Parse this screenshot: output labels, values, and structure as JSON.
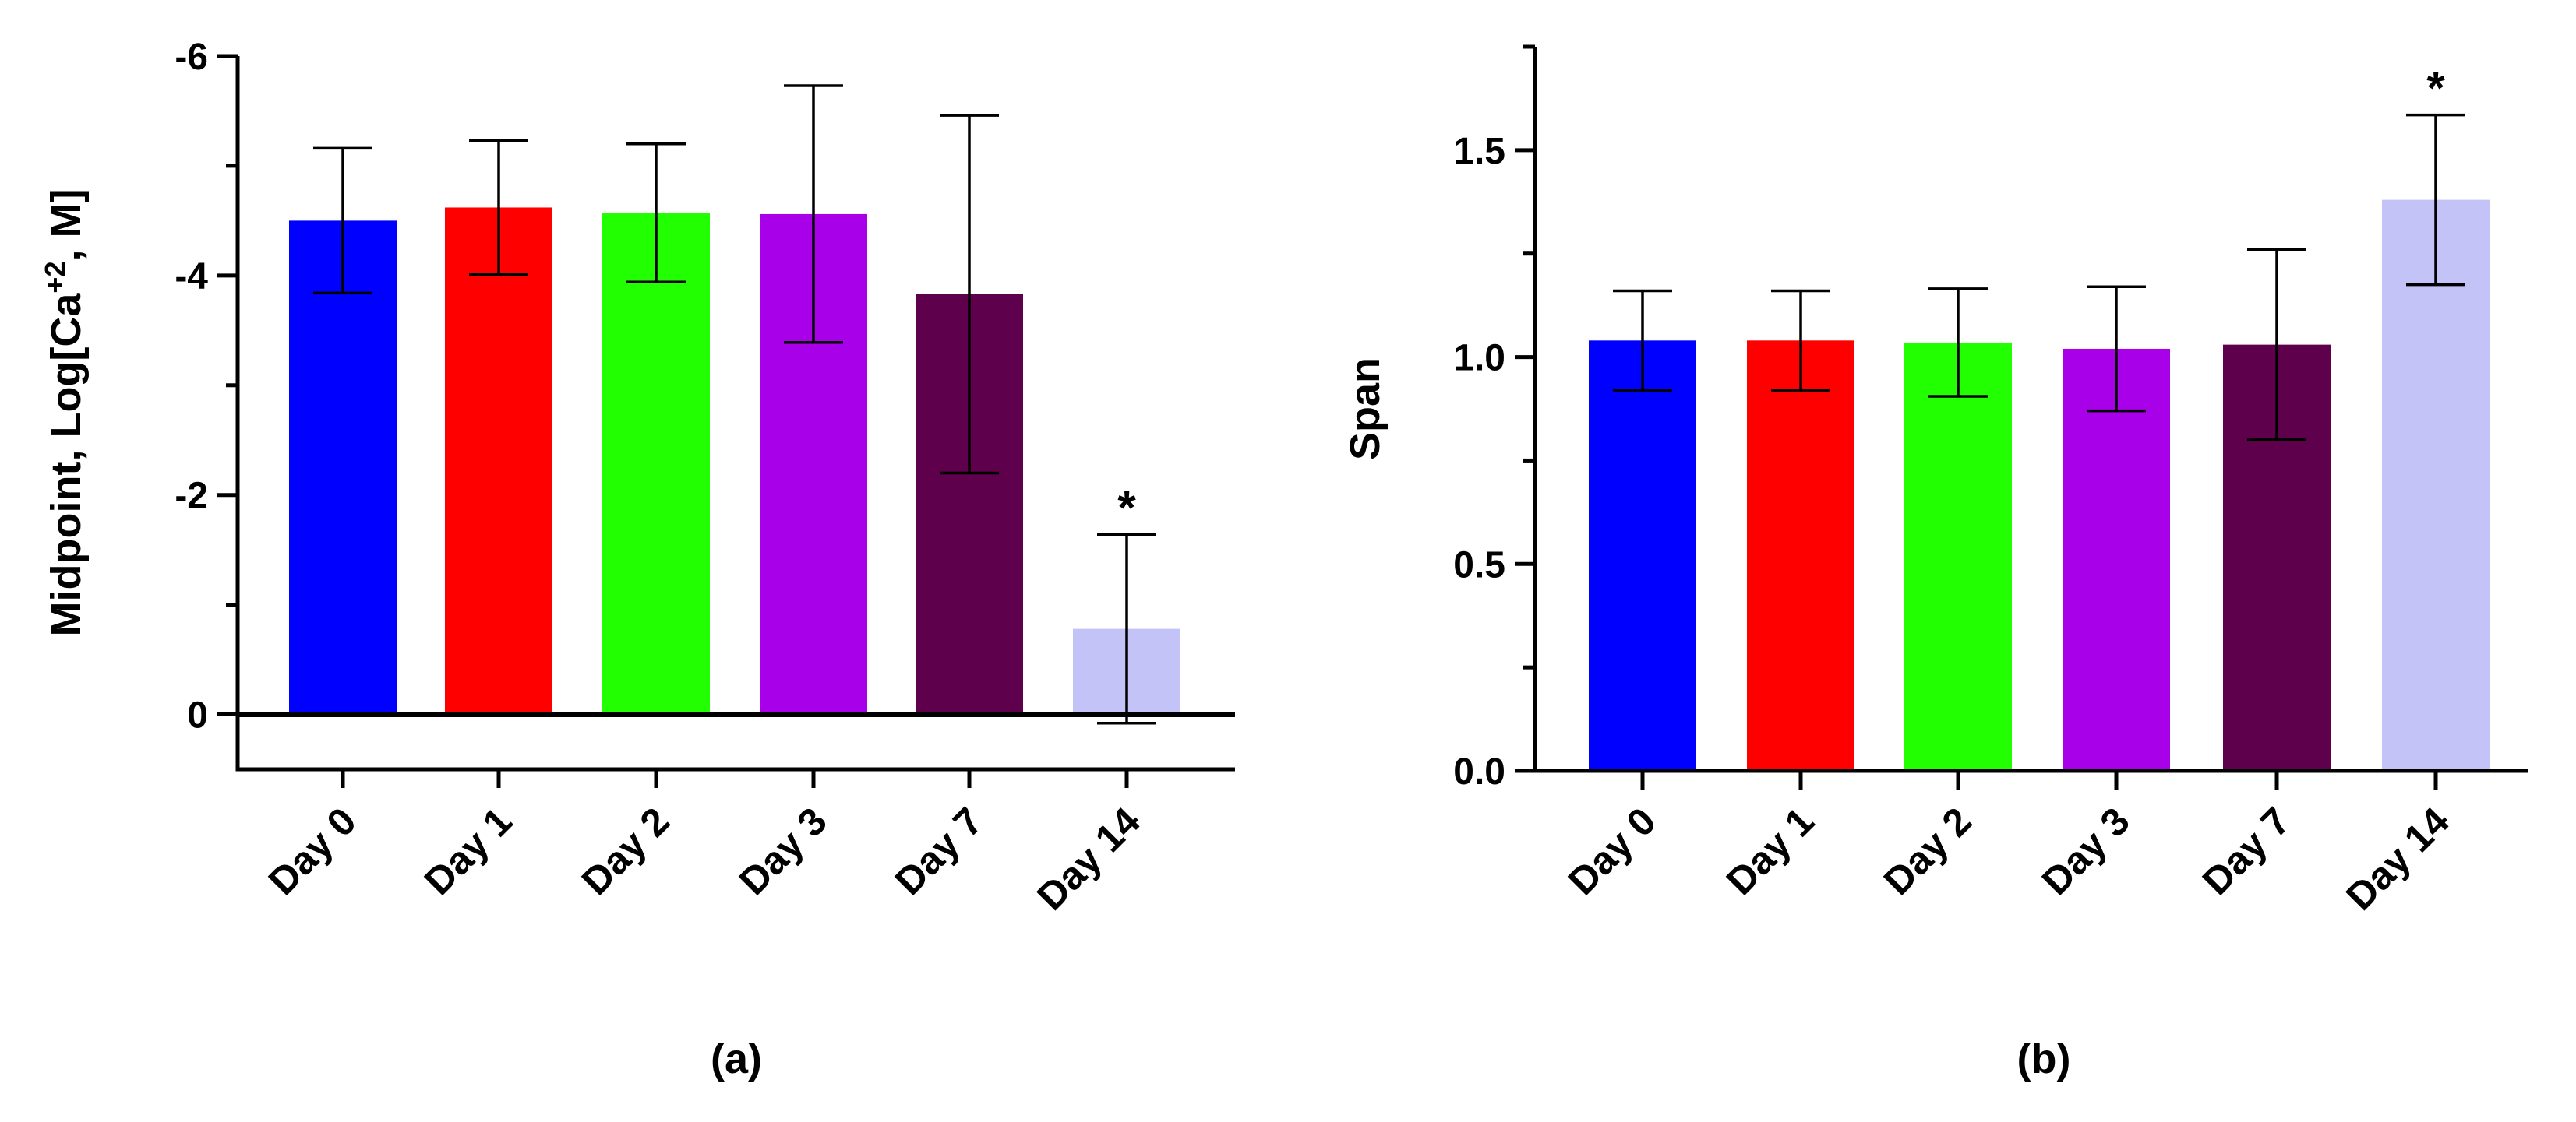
{
  "chart_data": [
    {
      "type": "bar",
      "panel_label": "(a)",
      "title": "",
      "xlabel": "",
      "ylabel_prefix": "Midpoint, Log[Ca",
      "ylabel_superscript": "+2",
      "ylabel_suffix": ", M]",
      "ylim": [
        0.5,
        -6
      ],
      "yticks": [
        0,
        -2,
        -4,
        -6
      ],
      "ytick_labels": [
        "0",
        "-2",
        "-4",
        "-6"
      ],
      "categories": [
        "Day 0",
        "Day 1",
        "Day 2",
        "Day 3",
        "Day 7",
        "Day 14"
      ],
      "values": [
        -4.5,
        -4.62,
        -4.57,
        -4.56,
        -3.83,
        -0.78
      ],
      "error": [
        0.66,
        0.61,
        0.63,
        1.17,
        1.63,
        0.86
      ],
      "colors": [
        "#0000FF",
        "#FF0000",
        "#22FF00",
        "#A800E8",
        "#5E004B",
        "#C3C3F8"
      ],
      "significance": [
        "",
        "",
        "",
        "",
        "",
        "*"
      ],
      "grid": false
    },
    {
      "type": "bar",
      "panel_label": "(b)",
      "title": "",
      "xlabel": "",
      "ylabel": "Span",
      "ylim": [
        0,
        1.75
      ],
      "yticks": [
        0,
        0.5,
        1.0,
        1.5
      ],
      "ytick_labels": [
        "0.0",
        "0.5",
        "1.0",
        "1.5"
      ],
      "categories": [
        "Day 0",
        "Day 1",
        "Day 2",
        "Day 3",
        "Day 7",
        "Day 14"
      ],
      "values": [
        1.04,
        1.04,
        1.035,
        1.02,
        1.03,
        1.38
      ],
      "error": [
        0.12,
        0.12,
        0.13,
        0.15,
        0.23,
        0.205
      ],
      "colors": [
        "#0000FF",
        "#FF0000",
        "#22FF00",
        "#A800E8",
        "#5E004B",
        "#C3C3F8"
      ],
      "significance": [
        "",
        "",
        "",
        "",
        "",
        "*"
      ],
      "grid": false
    }
  ]
}
